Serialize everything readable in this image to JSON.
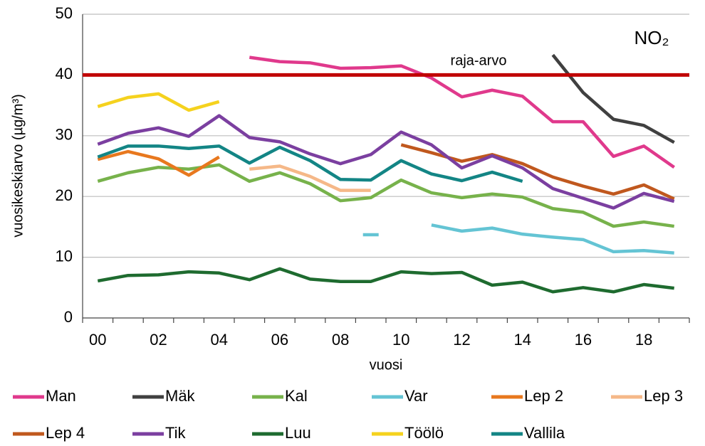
{
  "chart_data": {
    "type": "line",
    "title": "NO₂",
    "y_label": "vuosikeskiarvo (µg/m³)",
    "x_label": "vuosi",
    "categories": [
      "00",
      null,
      "02",
      null,
      "04",
      null,
      "06",
      null,
      "08",
      null,
      "10",
      null,
      "12",
      null,
      "14",
      null,
      "16",
      null,
      "18",
      null
    ],
    "ylim": [
      0,
      50
    ],
    "yticks": [
      0,
      10,
      20,
      30,
      40,
      50
    ],
    "grid": true,
    "reference_line": {
      "value": 40,
      "label": "raja-arvo",
      "color": "#c00000"
    },
    "series": [
      {
        "name": "Man",
        "color": "#e0398c",
        "values": [
          null,
          null,
          null,
          null,
          null,
          42.9,
          42.2,
          42.0,
          41.1,
          41.2,
          41.5,
          39.5,
          36.4,
          37.5,
          36.5,
          32.3,
          32.3,
          26.6,
          28.3,
          24.8
        ]
      },
      {
        "name": "Mäk",
        "color": "#404040",
        "values": [
          null,
          null,
          null,
          null,
          null,
          null,
          null,
          null,
          null,
          null,
          null,
          null,
          null,
          null,
          null,
          43.3,
          37.1,
          32.7,
          31.7,
          28.9
        ]
      },
      {
        "name": "Kal",
        "color": "#77b24b",
        "values": [
          22.5,
          23.9,
          24.8,
          24.5,
          25.2,
          22.5,
          23.9,
          22.1,
          19.3,
          19.8,
          22.7,
          20.6,
          19.8,
          20.4,
          19.9,
          18.0,
          17.4,
          15.1,
          15.8,
          15.1
        ]
      },
      {
        "name": "Var",
        "color": "#64c4d4",
        "values": [
          null,
          null,
          null,
          null,
          null,
          null,
          null,
          null,
          null,
          13.7,
          null,
          15.3,
          14.3,
          14.8,
          13.8,
          13.3,
          12.9,
          10.9,
          11.1,
          10.7
        ]
      },
      {
        "name": "Lep 2",
        "color": "#e8781e",
        "values": [
          26.1,
          27.4,
          26.2,
          23.5,
          26.5,
          null,
          null,
          null,
          null,
          null,
          null,
          null,
          null,
          null,
          null,
          null,
          null,
          null,
          null,
          null
        ]
      },
      {
        "name": "Lep 3",
        "color": "#f5b888",
        "values": [
          null,
          null,
          null,
          null,
          null,
          24.5,
          25.0,
          23.3,
          21.0,
          21.0,
          null,
          null,
          null,
          null,
          null,
          null,
          null,
          null,
          null,
          null
        ]
      },
      {
        "name": "Lep 4",
        "color": "#c0581e",
        "values": [
          null,
          null,
          null,
          null,
          null,
          null,
          null,
          null,
          null,
          null,
          28.5,
          27.2,
          25.8,
          26.9,
          25.4,
          23.2,
          21.7,
          20.4,
          21.9,
          19.6
        ]
      },
      {
        "name": "Tik",
        "color": "#7b3fa0",
        "values": [
          28.6,
          30.4,
          31.3,
          29.9,
          33.3,
          29.7,
          29.0,
          27.0,
          25.4,
          26.9,
          30.6,
          28.5,
          24.7,
          26.7,
          24.7,
          21.3,
          19.7,
          18.1,
          20.5,
          19.2
        ]
      },
      {
        "name": "Luu",
        "color": "#1e6b2f",
        "values": [
          6.1,
          7.0,
          7.1,
          7.6,
          7.4,
          6.3,
          8.1,
          6.4,
          6.0,
          6.0,
          7.6,
          7.3,
          7.5,
          5.4,
          5.9,
          4.3,
          5.0,
          4.3,
          5.5,
          4.9
        ]
      },
      {
        "name": "Töölö",
        "color": "#f5d21e",
        "values": [
          34.8,
          36.3,
          36.9,
          34.2,
          35.6,
          null,
          null,
          null,
          null,
          null,
          null,
          null,
          null,
          null,
          null,
          null,
          null,
          null,
          null,
          null
        ]
      },
      {
        "name": "Vallila",
        "color": "#138585",
        "values": [
          26.5,
          28.3,
          28.3,
          27.9,
          28.3,
          25.5,
          28.1,
          25.9,
          22.8,
          22.7,
          25.9,
          23.7,
          22.6,
          24.0,
          22.5,
          null,
          null,
          null,
          null,
          null
        ]
      }
    ]
  }
}
